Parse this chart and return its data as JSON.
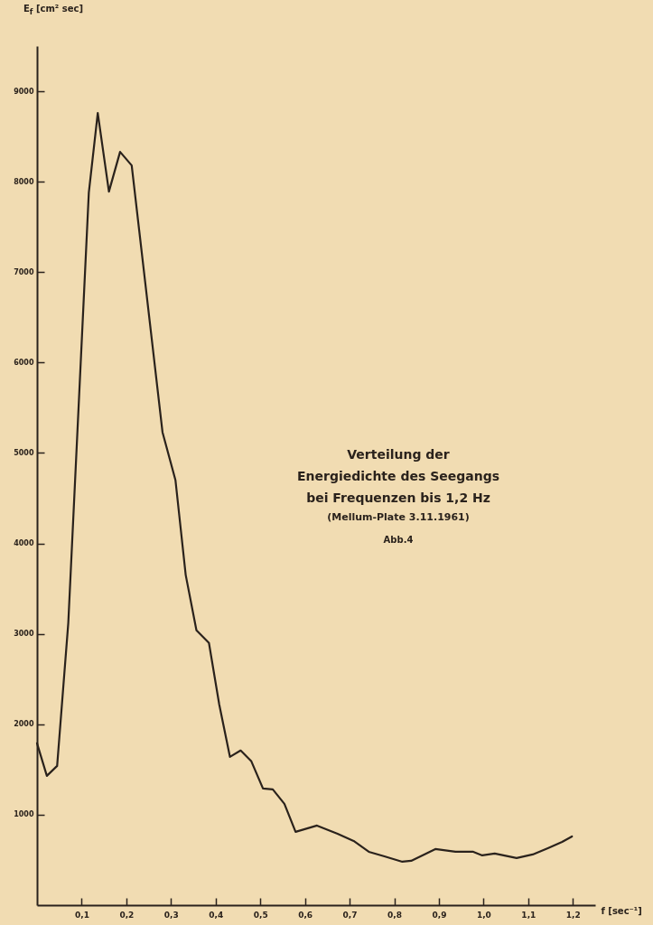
{
  "chart_data": {
    "type": "line",
    "title": "Verteilung der Energiedichte des Seegangs bei Frequenzen bis 1,2 Hz",
    "subtitle": "(Mellum-Plate 3.11.1961)",
    "annotations": [
      "Abb.4"
    ],
    "xlabel": "f [sec⁻¹]",
    "ylabel": "E$_{f}$ [cm² sec]",
    "x": [
      0,
      0.022,
      0.045,
      0.07,
      0.116,
      0.136,
      0.161,
      0.186,
      0.212,
      0.281,
      0.31,
      0.333,
      0.357,
      0.385,
      0.408,
      0.432,
      0.456,
      0.48,
      0.506,
      0.528,
      0.554,
      0.579,
      0.627,
      0.673,
      0.709,
      0.743,
      0.778,
      0.818,
      0.838,
      0.892,
      0.937,
      0.977,
      0.997,
      1.025,
      1.074,
      1.11,
      1.144,
      1.176,
      1.198
    ],
    "series": [
      {
        "color": "#2a221c",
        "values": [
          1790,
          1430,
          1540,
          3120,
          7880,
          8760,
          7890,
          8330,
          8180,
          5230,
          4700,
          3650,
          3040,
          2900,
          2220,
          1640,
          1710,
          1590,
          1290,
          1280,
          1120,
          810,
          880,
          790,
          710,
          590,
          540,
          480,
          490,
          620,
          590,
          590,
          550,
          570,
          520,
          560,
          630,
          700,
          760
        ]
      }
    ],
    "xlim": [
      0,
      1.25
    ],
    "ylim": [
      0,
      9500
    ],
    "xticks": [
      {
        "value": 0.1,
        "label": "0,1"
      },
      {
        "value": 0.2,
        "label": "0,2"
      },
      {
        "value": 0.3,
        "label": "0,3"
      },
      {
        "value": 0.4,
        "label": "0,4"
      },
      {
        "value": 0.5,
        "label": "0,5"
      },
      {
        "value": 0.6,
        "label": "0,6"
      },
      {
        "value": 0.7,
        "label": "0,7"
      },
      {
        "value": 0.8,
        "label": "0,8"
      },
      {
        "value": 0.9,
        "label": "0,9"
      },
      {
        "value": 1.0,
        "label": "1,0"
      },
      {
        "value": 1.1,
        "label": "1,1"
      },
      {
        "value": 1.2,
        "label": "1,2"
      }
    ],
    "yticks": [
      1000,
      2000,
      3000,
      4000,
      5000,
      6000,
      7000,
      8000,
      9000
    ],
    "grid": false,
    "line_style": "solid"
  }
}
